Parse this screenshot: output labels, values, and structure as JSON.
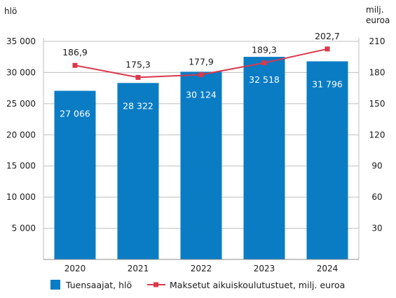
{
  "colors": {
    "bar": "#0a7cc4",
    "line": "#d9384d",
    "grid": "#bfbfbf",
    "text": "#1a1a1a"
  },
  "chart_data": {
    "type": "bar+line",
    "categories": [
      "2020",
      "2021",
      "2022",
      "2023",
      "2024"
    ],
    "series": [
      {
        "name": "Tuensaajat, hlö",
        "type": "bar",
        "axis": "left",
        "values": [
          27066,
          28322,
          30124,
          32518,
          31796
        ],
        "labels": [
          "27 066",
          "28 322",
          "30 124",
          "32 518",
          "31 796"
        ]
      },
      {
        "name": "Maksetut aikuiskoulutustuet, milj. euroa",
        "type": "line",
        "axis": "right",
        "values": [
          186.9,
          175.3,
          177.9,
          189.3,
          202.7
        ],
        "labels": [
          "186,9",
          "175,3",
          "177,9",
          "189,3",
          "202,7"
        ]
      }
    ],
    "y_left": {
      "label": "hlö",
      "range": [
        0,
        35000
      ],
      "ticks": [
        5000,
        10000,
        15000,
        20000,
        25000,
        30000,
        35000
      ],
      "tick_labels": [
        "5 000",
        "10 000",
        "15 000",
        "20 000",
        "25 000",
        "30 000",
        "35 000"
      ]
    },
    "y_right": {
      "label_line1": "milj.",
      "label_line2": "euroa",
      "range": [
        0,
        210
      ],
      "ticks": [
        30,
        60,
        90,
        120,
        150,
        180,
        210
      ],
      "tick_labels": [
        "30",
        "60",
        "90",
        "120",
        "150",
        "180",
        "210"
      ]
    },
    "grid": true,
    "legend_position": "bottom"
  }
}
